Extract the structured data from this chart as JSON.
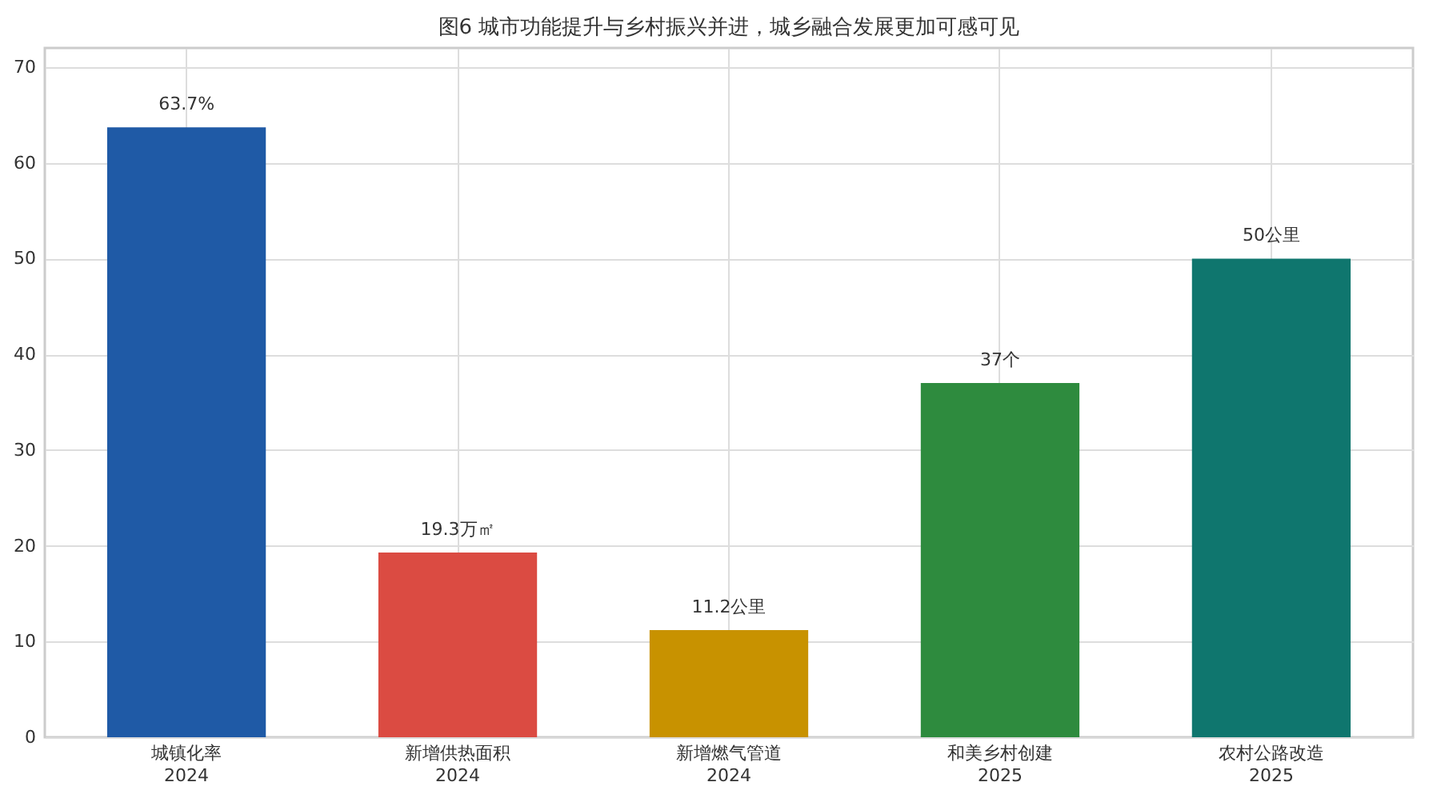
{
  "chart_data": {
    "type": "bar",
    "title": "图6 城市功能提升与乡村振兴并进，城乡融合发展更加可感可见",
    "categories": [
      "城镇化率\n2024",
      "新增供热面积\n2024",
      "新增燃气管道\n2024",
      "和美乡村创建\n2025",
      "农村公路改造\n2025"
    ],
    "values": [
      63.7,
      19.3,
      11.2,
      37,
      50
    ],
    "colors": [
      "#1f5aa6",
      "#db4b42",
      "#c89200",
      "#2e8b3e",
      "#0f766e"
    ],
    "value_labels": [
      "63.7%",
      "19.3万㎡",
      "11.2公里",
      "37个",
      "50公里"
    ],
    "ylim": [
      0,
      72
    ],
    "yticks": [
      0,
      10,
      20,
      30,
      40,
      50,
      60,
      70
    ],
    "grid": true
  }
}
